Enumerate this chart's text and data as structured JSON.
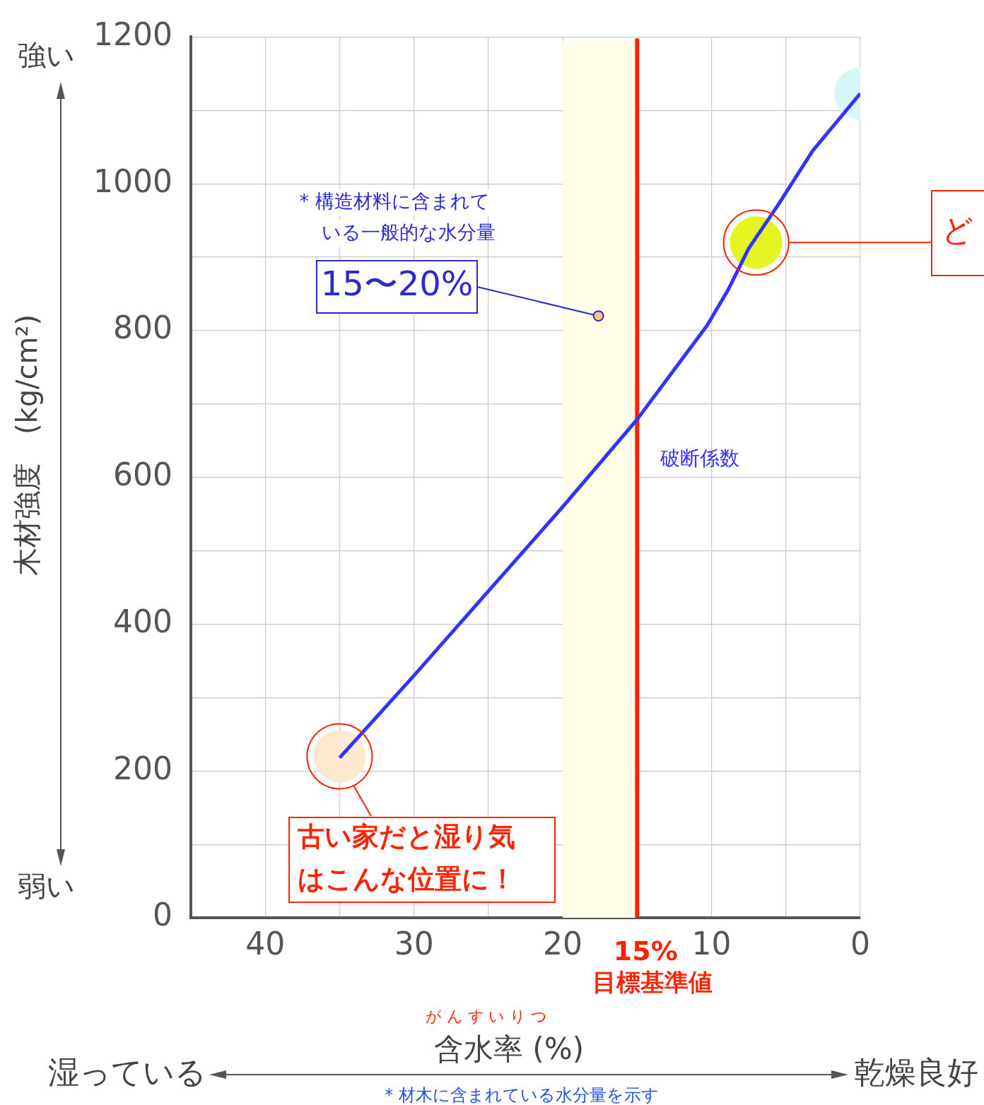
{
  "chart_data": {
    "type": "line",
    "title": null,
    "xlabel": "含水率 (%)",
    "ylabel": "木材強度　(kg/cm²)",
    "xlim": [
      45,
      0
    ],
    "xticks": [
      40,
      {
        "value": 35,
        "label": null
      },
      30,
      {
        "value": 25,
        "label": null
      },
      20,
      {
        "value": 15,
        "label": null
      },
      10,
      {
        "value": 5,
        "label": null
      },
      0
    ],
    "ylim": [
      0,
      1200
    ],
    "yticks": [
      0,
      {
        "value": 100,
        "label": null
      },
      200,
      {
        "value": 300,
        "label": null
      },
      400,
      {
        "value": 500,
        "label": null
      },
      600,
      {
        "value": 700,
        "label": null
      },
      800,
      {
        "value": 900,
        "label": null
      },
      1000,
      {
        "value": 1100,
        "label": null
      },
      1200
    ],
    "grid": true,
    "legend": false,
    "series": [
      {
        "name": "破断係数",
        "color": "#3333ff",
        "x": [
          35,
          30,
          25,
          20,
          15,
          10.3,
          8.9,
          7.5,
          5.6,
          3.2,
          0
        ],
        "values": [
          218,
          330,
          445,
          560,
          679,
          807,
          855,
          912,
          969,
          1045,
          1123
        ]
      },
      {
        "type": "scatter",
        "x": [
          35,
          7,
          0
        ],
        "values": [
          220,
          920,
          1123
        ],
        "colors": [
          "#fde9d0",
          "#e5f522",
          "#d9f7f7"
        ]
      }
    ],
    "bands": [
      {
        "axis": "x",
        "from": 20,
        "to": 15,
        "color": "#fffde8"
      }
    ],
    "ref_lines": [
      {
        "axis": "x",
        "value": 15,
        "label": "15%\n目標基準値",
        "color": "#ff2200"
      }
    ],
    "annotations": [
      "強い",
      "弱い",
      "* 構造材料に含まれている一般的な水分量",
      {
        "text": "15〜20%",
        "x": 17.6,
        "y": 820
      },
      {
        "text": "古い家だと湿り気はこんな位置に！",
        "x": 35,
        "y": 220
      },
      "ど",
      "がんすいりつ",
      "湿っている",
      "乾燥良好",
      "* 材木に含まれている水分量を示す"
    ]
  }
}
